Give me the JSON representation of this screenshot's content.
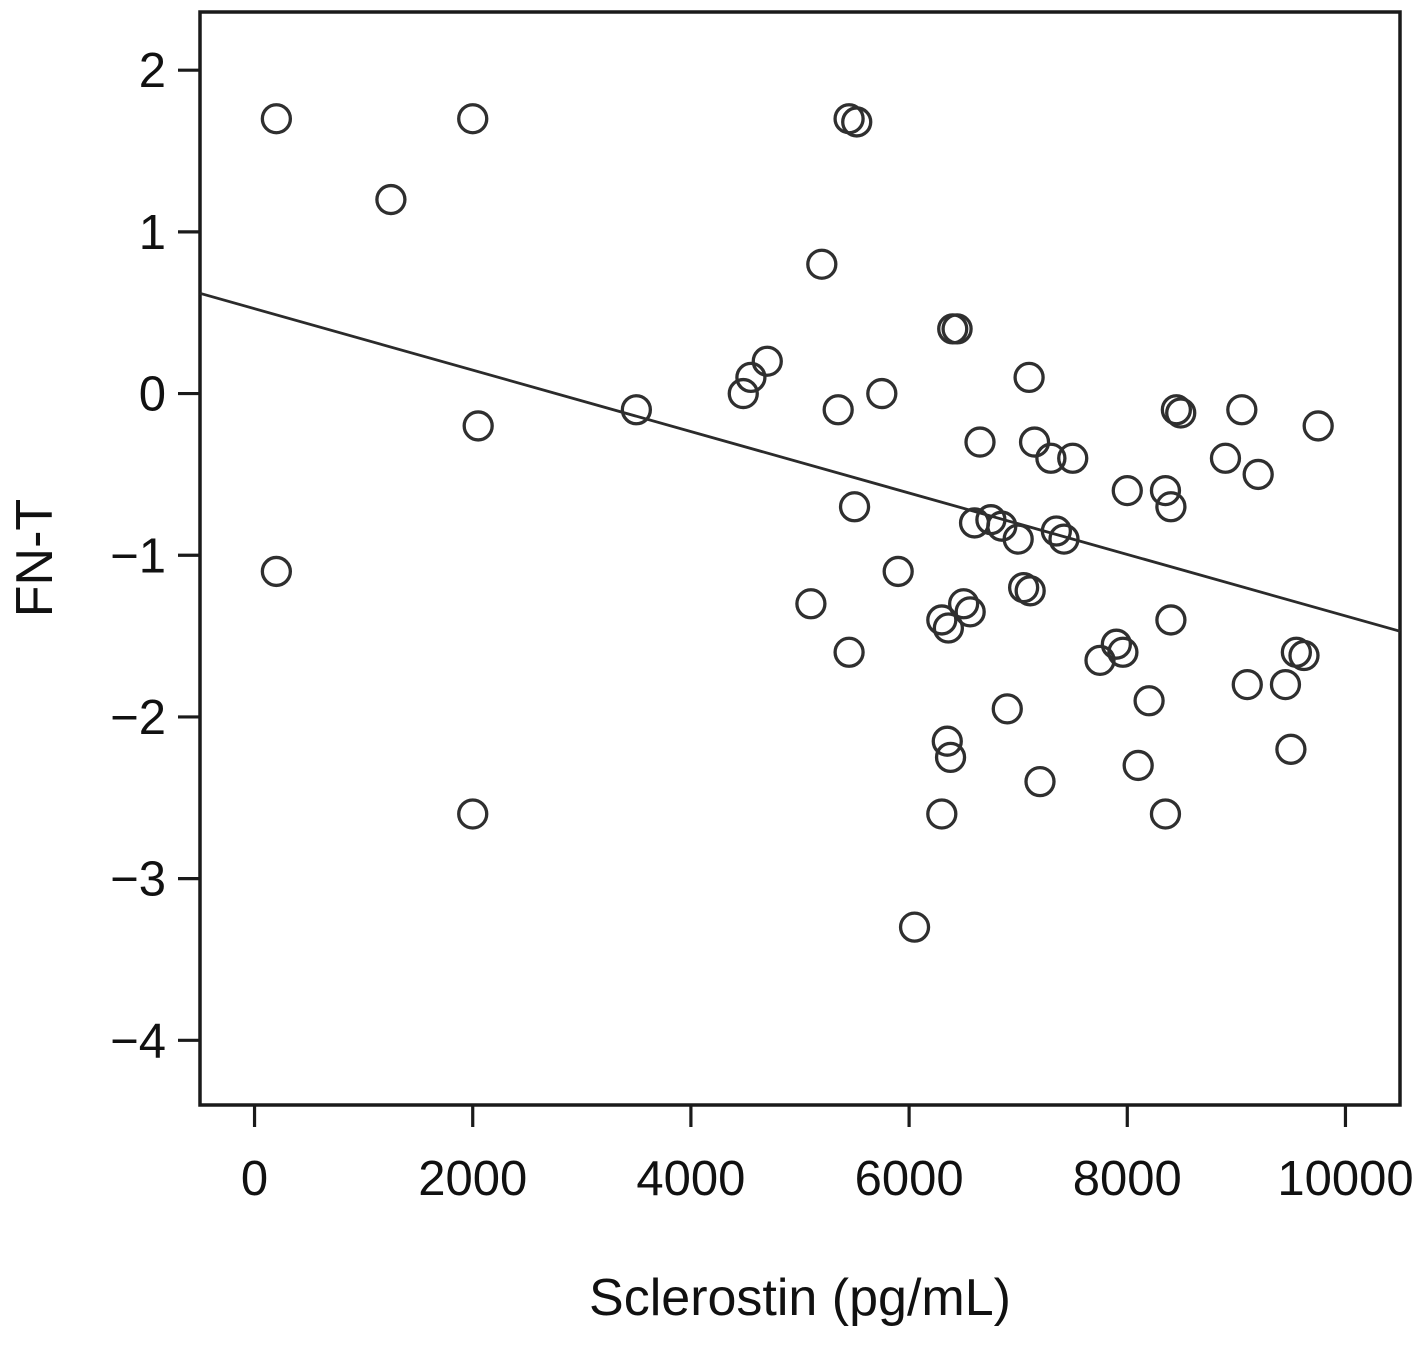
{
  "chart_data": {
    "type": "scatter",
    "title": "",
    "xlabel": "Sclerostin (pg/mL)",
    "ylabel": "FN-T",
    "xlim": [
      -500,
      10500
    ],
    "ylim": [
      -4.4,
      2.36
    ],
    "grid": false,
    "legend": "none",
    "marker": "open-circle",
    "x_ticks": [
      0,
      2000,
      4000,
      6000,
      8000,
      10000
    ],
    "x_tick_labels": [
      "0",
      "2000",
      "4000",
      "6000",
      "8000",
      "10000"
    ],
    "y_ticks": [
      2,
      1,
      0,
      -1,
      -2,
      -3,
      -4
    ],
    "y_tick_labels": [
      "2",
      "1",
      "0",
      "−1",
      "−2",
      "−3",
      "−4"
    ],
    "regression_line": {
      "x1": -500,
      "y1": 0.62,
      "x2": 10500,
      "y2": -1.47
    },
    "points": [
      [
        200,
        1.7
      ],
      [
        2000,
        1.7
      ],
      [
        1250,
        1.2
      ],
      [
        5450,
        1.7
      ],
      [
        5520,
        1.68
      ],
      [
        5200,
        0.8
      ],
      [
        6400,
        0.4
      ],
      [
        6440,
        0.4
      ],
      [
        4700,
        0.2
      ],
      [
        4550,
        0.1
      ],
      [
        4480,
        0.0
      ],
      [
        7100,
        0.1
      ],
      [
        5350,
        -0.1
      ],
      [
        5750,
        0.0
      ],
      [
        3500,
        -0.1
      ],
      [
        2050,
        -0.2
      ],
      [
        8450,
        -0.1
      ],
      [
        8490,
        -0.12
      ],
      [
        9050,
        -0.1
      ],
      [
        9750,
        -0.2
      ],
      [
        6650,
        -0.3
      ],
      [
        7150,
        -0.3
      ],
      [
        7300,
        -0.4
      ],
      [
        7500,
        -0.4
      ],
      [
        8900,
        -0.4
      ],
      [
        9200,
        -0.5
      ],
      [
        8000,
        -0.6
      ],
      [
        8350,
        -0.6
      ],
      [
        8400,
        -0.7
      ],
      [
        5500,
        -0.7
      ],
      [
        6600,
        -0.8
      ],
      [
        6750,
        -0.78
      ],
      [
        6850,
        -0.82
      ],
      [
        7000,
        -0.9
      ],
      [
        7350,
        -0.85
      ],
      [
        7420,
        -0.9
      ],
      [
        200,
        -1.1
      ],
      [
        5900,
        -1.1
      ],
      [
        7050,
        -1.2
      ],
      [
        7110,
        -1.22
      ],
      [
        5100,
        -1.3
      ],
      [
        6500,
        -1.3
      ],
      [
        6560,
        -1.35
      ],
      [
        6300,
        -1.4
      ],
      [
        6360,
        -1.45
      ],
      [
        8400,
        -1.4
      ],
      [
        7900,
        -1.55
      ],
      [
        7960,
        -1.6
      ],
      [
        5450,
        -1.6
      ],
      [
        9550,
        -1.6
      ],
      [
        9620,
        -1.62
      ],
      [
        7750,
        -1.65
      ],
      [
        9100,
        -1.8
      ],
      [
        9450,
        -1.8
      ],
      [
        6900,
        -1.95
      ],
      [
        8200,
        -1.9
      ],
      [
        6350,
        -2.15
      ],
      [
        6380,
        -2.25
      ],
      [
        9500,
        -2.2
      ],
      [
        7200,
        -2.4
      ],
      [
        8100,
        -2.3
      ],
      [
        6300,
        -2.6
      ],
      [
        2000,
        -2.6
      ],
      [
        8350,
        -2.6
      ],
      [
        6050,
        -3.3
      ]
    ]
  },
  "colors": {
    "marker_stroke": "#2f2f2f",
    "line_stroke": "#2b2b2b",
    "axis_stroke": "#1a1a1a",
    "text": "#111111",
    "background": "#ffffff"
  }
}
